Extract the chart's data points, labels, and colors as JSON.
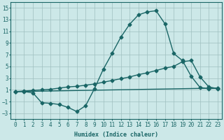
{
  "xlabel": "Humidex (Indice chaleur)",
  "background_color": "#cce8e8",
  "grid_color": "#9fbfbf",
  "line_color": "#1a6666",
  "xlim": [
    -0.5,
    23.5
  ],
  "ylim": [
    -4,
    16
  ],
  "xticks": [
    0,
    1,
    2,
    3,
    4,
    5,
    6,
    7,
    8,
    9,
    10,
    11,
    12,
    13,
    14,
    15,
    16,
    17,
    18,
    19,
    20,
    21,
    22,
    23
  ],
  "yticks": [
    -3,
    -1,
    1,
    3,
    5,
    7,
    9,
    11,
    13,
    15
  ],
  "line1_x": [
    0,
    1,
    2,
    3,
    4,
    5,
    6,
    7,
    8,
    9,
    10,
    11,
    12,
    13,
    14,
    15,
    16,
    17,
    18,
    19,
    20,
    21,
    22,
    23
  ],
  "line1_y": [
    0.7,
    0.7,
    0.5,
    -1.2,
    -1.3,
    -1.5,
    -2.0,
    -2.7,
    -1.7,
    1.2,
    4.5,
    7.2,
    10.0,
    12.2,
    13.8,
    14.3,
    14.5,
    12.3,
    7.2,
    6.0,
    3.3,
    1.4,
    1.2,
    1.3
  ],
  "line2_x": [
    0,
    1,
    2,
    3,
    4,
    5,
    6,
    7,
    8,
    9,
    10,
    11,
    12,
    13,
    14,
    15,
    16,
    17,
    18,
    19,
    20,
    21,
    22,
    23
  ],
  "line2_y": [
    0.7,
    0.8,
    0.9,
    1.0,
    1.1,
    1.3,
    1.5,
    1.6,
    1.8,
    2.0,
    2.3,
    2.6,
    2.9,
    3.2,
    3.6,
    3.9,
    4.3,
    4.7,
    5.0,
    5.8,
    6.0,
    3.2,
    1.5,
    1.2
  ],
  "line3_x": [
    0,
    23
  ],
  "line3_y": [
    0.7,
    1.3
  ],
  "marker": "D",
  "markersize": 2.5,
  "linewidth": 1.0
}
